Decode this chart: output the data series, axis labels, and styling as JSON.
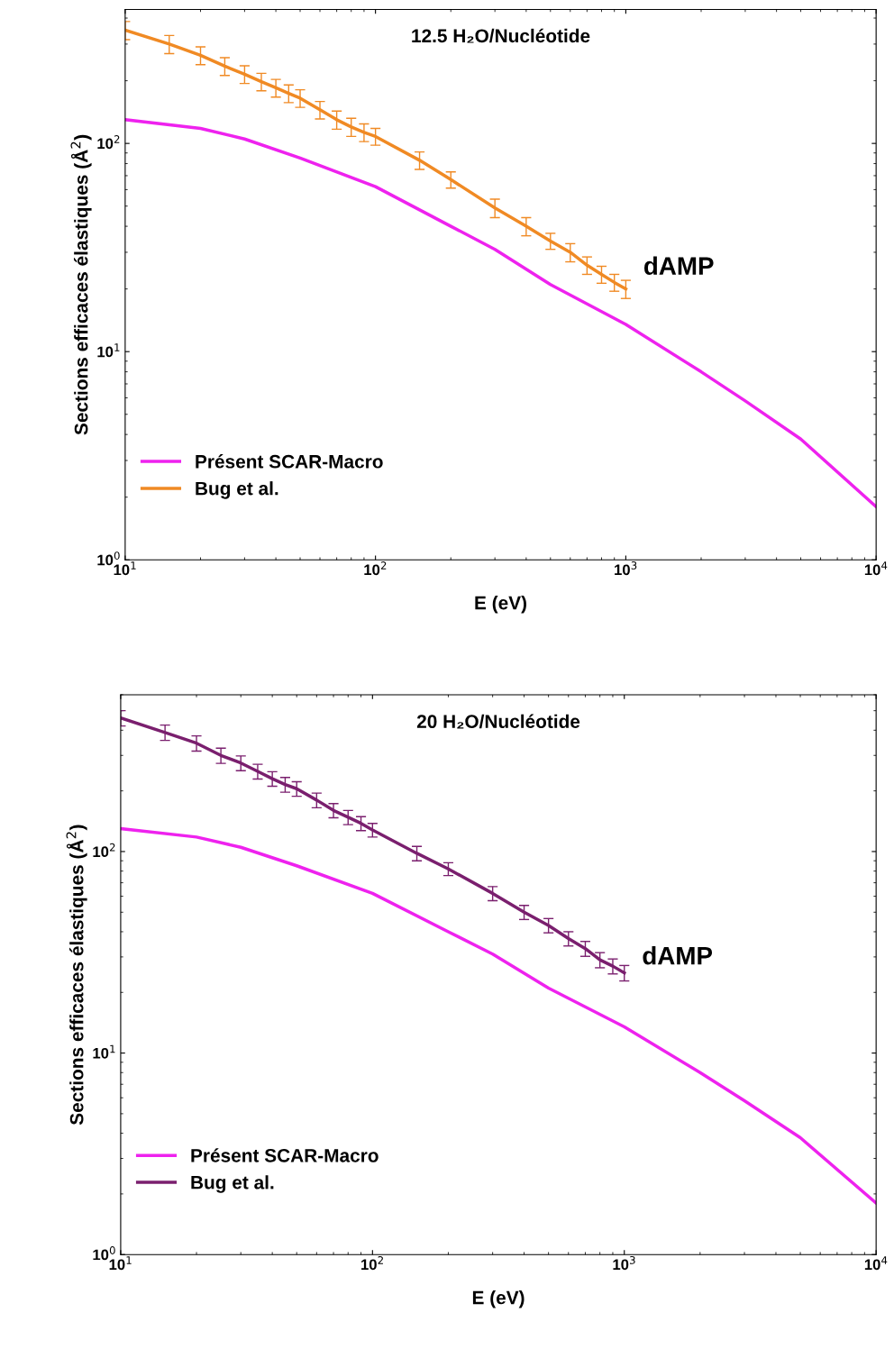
{
  "chart_data": [
    {
      "type": "line",
      "title": "12.5 H₂O/Nucléotide",
      "xlabel": "E (eV)",
      "ylabel": "Sections efficaces élastiques (Å$^{2}$)",
      "log": "xy",
      "legend": "bottom left",
      "marker": "none",
      "line_style": "solid",
      "grid": false,
      "xlim": [
        10,
        10000
      ],
      "xticks": [
        {
          "value": 10,
          "label": "10$^{1}$"
        },
        {
          "value": 100,
          "label": "10$^{2}$"
        },
        {
          "value": 1000,
          "label": "10$^{3}$"
        },
        {
          "value": 10000,
          "label": "10$^{4}$"
        }
      ],
      "ylim": [
        1,
        440
      ],
      "yticks": [
        {
          "value": 1,
          "label": "10$^{0}$"
        },
        {
          "value": 10,
          "label": "10$^{1}$"
        },
        {
          "value": 100,
          "label": "10$^{2}$"
        }
      ],
      "annotations": [
        "dAMP"
      ],
      "series": [
        {
          "name": "Présent SCAR-Macro",
          "color": "#ee22ee",
          "x": [
            10,
            20,
            30,
            50,
            100,
            200,
            300,
            500,
            1000,
            2000,
            3000,
            5000,
            10000
          ],
          "values": [
            130,
            118,
            105,
            85,
            62,
            40,
            31,
            21,
            13.5,
            8,
            5.8,
            3.8,
            1.8
          ]
        },
        {
          "name": "Bug et al.",
          "color": "#f08a24",
          "x": [
            10,
            15,
            20,
            25,
            30,
            35,
            40,
            45,
            50,
            60,
            70,
            80,
            90,
            100,
            150,
            200,
            300,
            400,
            500,
            600,
            700,
            800,
            900,
            1000
          ],
          "values": [
            350,
            300,
            265,
            235,
            215,
            198,
            185,
            174,
            165,
            145,
            130,
            120,
            113,
            108,
            83,
            67,
            49,
            40,
            34,
            30,
            26,
            23.5,
            21.5,
            20
          ],
          "errors": [
            35,
            30,
            26,
            23,
            21,
            19,
            18,
            17,
            16,
            14,
            13,
            12,
            11,
            10,
            8,
            6,
            5,
            4,
            3,
            3,
            2.5,
            2.2,
            2,
            2
          ]
        }
      ]
    },
    {
      "type": "line",
      "title": "20 H₂O/Nucléotide",
      "xlabel": "E (eV)",
      "ylabel": "Sections efficaces élastiques (Å$^{2}$)",
      "log": "xy",
      "legend": "bottom left",
      "marker": "none",
      "line_style": "solid",
      "grid": false,
      "xlim": [
        10,
        10000
      ],
      "xticks": [
        {
          "value": 10,
          "label": "10$^{1}$"
        },
        {
          "value": 100,
          "label": "10$^{2}$"
        },
        {
          "value": 1000,
          "label": "10$^{3}$"
        },
        {
          "value": 10000,
          "label": "10$^{4}$"
        }
      ],
      "ylim": [
        1,
        600
      ],
      "yticks": [
        {
          "value": 1,
          "label": "10$^{0}$"
        },
        {
          "value": 10,
          "label": "10$^{1}$"
        },
        {
          "value": 100,
          "label": "10$^{2}$"
        }
      ],
      "annotations": [
        "dAMP"
      ],
      "series": [
        {
          "name": "Présent SCAR-Macro",
          "color": "#ee22ee",
          "x": [
            10,
            20,
            30,
            50,
            100,
            200,
            300,
            500,
            1000,
            2000,
            3000,
            5000,
            10000
          ],
          "values": [
            130,
            118,
            105,
            85,
            62,
            40,
            31,
            21,
            13.5,
            8,
            5.8,
            3.8,
            1.8
          ]
        },
        {
          "name": "Bug et al.",
          "color": "#7a1f6e",
          "x": [
            10,
            15,
            20,
            25,
            30,
            35,
            40,
            45,
            50,
            60,
            70,
            80,
            90,
            100,
            150,
            200,
            300,
            400,
            500,
            600,
            700,
            800,
            900,
            1000
          ],
          "values": [
            460,
            390,
            345,
            300,
            275,
            250,
            230,
            215,
            205,
            180,
            160,
            148,
            138,
            128,
            98,
            82,
            62,
            50,
            43,
            37,
            33,
            29,
            27,
            25
          ],
          "errors": [
            40,
            34,
            30,
            26,
            23,
            21,
            19,
            18,
            17,
            15,
            13,
            12,
            11,
            10,
            8,
            6,
            5,
            4,
            3.5,
            3,
            2.8,
            2.5,
            2.3,
            2.2
          ]
        }
      ]
    }
  ]
}
